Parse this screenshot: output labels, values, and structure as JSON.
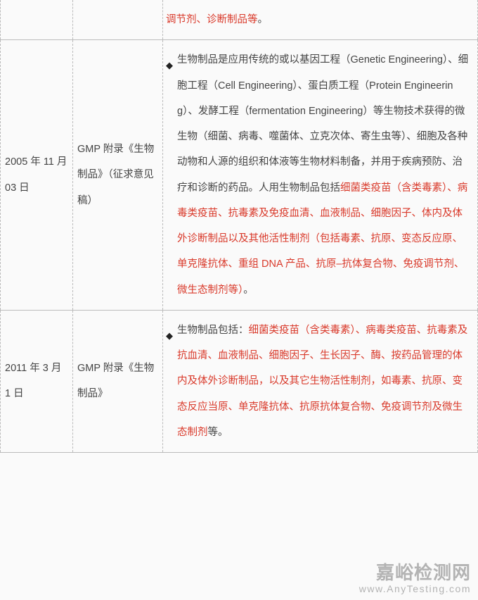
{
  "table": {
    "rows": [
      {
        "date": "",
        "doc": "",
        "content_prefix": "",
        "content_highlight": "调节剂、诊断制品等",
        "content_suffix": "。"
      },
      {
        "date": "2005 年 11 月 03 日",
        "doc": "GMP 附录《生物制品》（征求意见稿）",
        "content_prefix": "生物制品是应用传统的或以基因工程（Genetic Engineering）、细胞工程（Cell Engineering）、蛋白质工程（Protein Engineering）、发酵工程（fermentation Engineering）等生物技术获得的微生物（细菌、病毒、噬菌体、立克次体、寄生虫等）、细胞及各种动物和人源的组织和体液等生物材料制备，并用于疾病预防、治疗和诊断的药品。人用生物制品包括",
        "content_highlight": "细菌类疫苗（含类毒素）、病毒类疫苗、抗毒素及免疫血清、血液制品、细胞因子、体内及体外诊断制品以及其他活性制剂（包括毒素、抗原、变态反应原、单克隆抗体、重组 DNA 产品、抗原–抗体复合物、免疫调节剂、微生态制剂等）",
        "content_suffix": "。"
      },
      {
        "date": "2011 年 3 月 1 日",
        "doc": "GMP 附录《生物制品》",
        "content_prefix": "生物制品包括：",
        "content_highlight": "细菌类疫苗（含类毒素）、病毒类疫苗、抗毒素及抗血清、血液制品、细胞因子、生长因子、酶、按药品管理的体内及体外诊断制品，以及其它生物活性制剂，如毒素、抗原、变态反应当原、单克隆抗体、抗原抗体复合物、免疫调节剂及微生态制剂",
        "content_suffix": "等。"
      }
    ]
  },
  "watermark": {
    "cn": "嘉峪检测网",
    "en": "www.AnyTesting.com"
  }
}
